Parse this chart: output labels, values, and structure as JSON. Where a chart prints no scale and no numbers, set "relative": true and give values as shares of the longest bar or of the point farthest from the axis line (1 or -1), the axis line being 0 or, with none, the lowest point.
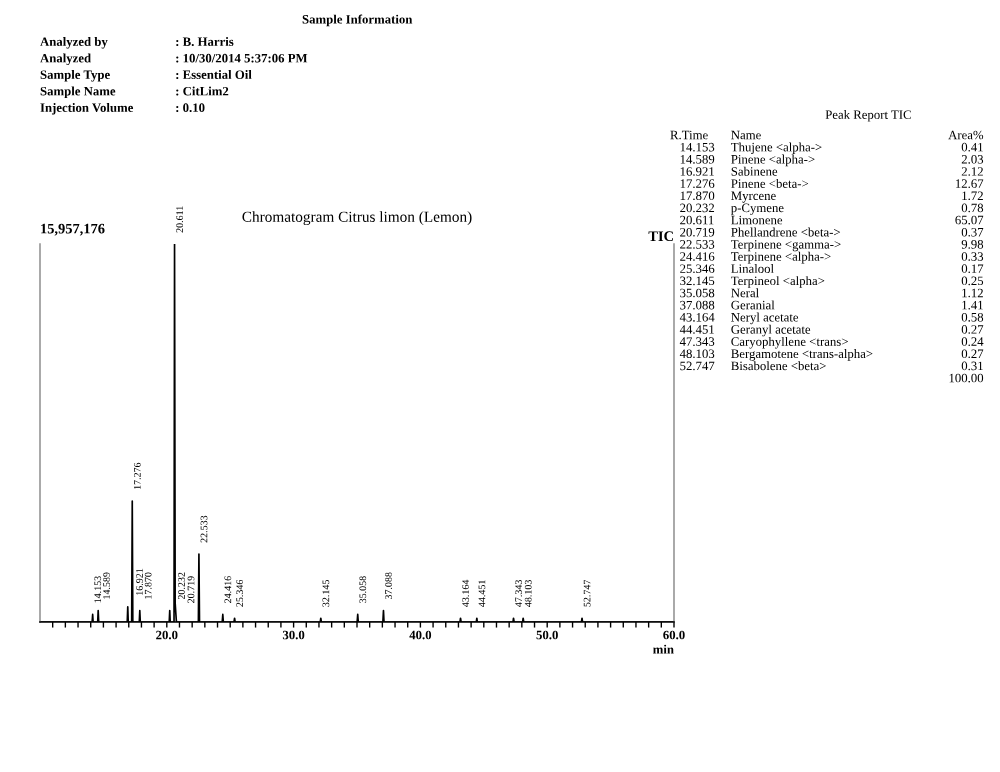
{
  "chart_data": [
    {
      "type": "other",
      "title": "Sample Information",
      "categories": [
        "Analyzed by",
        "Analyzed",
        "Sample Type",
        "Sample Name",
        "Injection Volume"
      ],
      "annotations": [
        ": B. Harris",
        ": 10/30/2014 5:37:06 PM",
        ": Essential Oil",
        ": CitLim2",
        ": 0.10"
      ]
    },
    {
      "type": "line",
      "title": "Chromatogram Citrus limon (Lemon)",
      "xlabel": "min",
      "relative": true,
      "grid": false,
      "tick_labels": "x",
      "marker": "none",
      "line_style": "solid",
      "xlim": [
        10,
        60
      ],
      "xticks": [
        {
          "value": 11,
          "label": null
        },
        {
          "value": 12,
          "label": null
        },
        {
          "value": 13,
          "label": null
        },
        {
          "value": 14,
          "label": null
        },
        {
          "value": 15,
          "label": null
        },
        {
          "value": 16,
          "label": null
        },
        {
          "value": 17,
          "label": null
        },
        {
          "value": 18,
          "label": null
        },
        {
          "value": 19,
          "label": null
        },
        {
          "value": 20,
          "label": "20.0"
        },
        {
          "value": 21,
          "label": null
        },
        {
          "value": 22,
          "label": null
        },
        {
          "value": 23,
          "label": null
        },
        {
          "value": 24,
          "label": null
        },
        {
          "value": 25,
          "label": null
        },
        {
          "value": 26,
          "label": null
        },
        {
          "value": 27,
          "label": null
        },
        {
          "value": 28,
          "label": null
        },
        {
          "value": 29,
          "label": null
        },
        {
          "value": 30,
          "label": "30.0"
        },
        {
          "value": 31,
          "label": null
        },
        {
          "value": 32,
          "label": null
        },
        {
          "value": 33,
          "label": null
        },
        {
          "value": 34,
          "label": null
        },
        {
          "value": 35,
          "label": null
        },
        {
          "value": 36,
          "label": null
        },
        {
          "value": 37,
          "label": null
        },
        {
          "value": 38,
          "label": null
        },
        {
          "value": 39,
          "label": null
        },
        {
          "value": 40,
          "label": "40.0"
        },
        {
          "value": 41,
          "label": null
        },
        {
          "value": 42,
          "label": null
        },
        {
          "value": 43,
          "label": null
        },
        {
          "value": 44,
          "label": null
        },
        {
          "value": 45,
          "label": null
        },
        {
          "value": 46,
          "label": null
        },
        {
          "value": 47,
          "label": null
        },
        {
          "value": 48,
          "label": null
        },
        {
          "value": 49,
          "label": null
        },
        {
          "value": 50,
          "label": "50.0"
        },
        {
          "value": 51,
          "label": null
        },
        {
          "value": 52,
          "label": null
        },
        {
          "value": 53,
          "label": null
        },
        {
          "value": 54,
          "label": null
        },
        {
          "value": 55,
          "label": null
        },
        {
          "value": 56,
          "label": null
        },
        {
          "value": 57,
          "label": null
        },
        {
          "value": 58,
          "label": null
        },
        {
          "value": 59,
          "label": null
        },
        {
          "value": 60,
          "label": "60.0"
        }
      ],
      "series": [
        {
          "color": "#000000",
          "x": [
            10,
            14.11,
            14.153,
            14.19,
            14.55,
            14.589,
            14.63,
            16.88,
            16.921,
            16.96,
            17.23,
            17.276,
            17.32,
            17.83,
            17.87,
            17.91,
            20.19,
            20.232,
            20.27,
            20.57,
            20.611,
            20.66,
            20.719,
            20.76,
            22.49,
            22.533,
            22.58,
            24.37,
            24.416,
            24.46,
            25.3,
            25.346,
            25.39,
            32.1,
            32.145,
            32.19,
            35.01,
            35.058,
            35.1,
            37.04,
            37.088,
            37.13,
            43.12,
            43.164,
            43.21,
            44.41,
            44.451,
            44.49,
            47.3,
            47.343,
            47.39,
            48.06,
            48.103,
            48.15,
            52.7,
            52.747,
            52.79,
            60
          ],
          "values": [
            0,
            0,
            0.02,
            0,
            0,
            0.03,
            0,
            0,
            0.04,
            0,
            0,
            0.32,
            0,
            0,
            0.03,
            0,
            0,
            0.03,
            0,
            0,
            1,
            0.05,
            0.02,
            0,
            0,
            0.18,
            0,
            0,
            0.02,
            0,
            0,
            0.01,
            0,
            0,
            0.01,
            0,
            0,
            0.02,
            0,
            0,
            0.03,
            0,
            0,
            0.01,
            0,
            0,
            0.01,
            0,
            0,
            0.01,
            0,
            0,
            0.01,
            0,
            0,
            0.01,
            0,
            0
          ]
        }
      ],
      "annotations": [
        "15,957,176",
        "TIC",
        {
          "text": "14.153",
          "x": 14.153,
          "y": 0.02
        },
        {
          "text": "14.589",
          "x": 14.589,
          "y": 0.03
        },
        {
          "text": "16.921",
          "x": 16.921,
          "y": 0.04
        },
        {
          "text": "17.276",
          "x": 17.276,
          "y": 0.32
        },
        {
          "text": "17.870",
          "x": 17.87,
          "y": 0.03
        },
        {
          "text": "20.232",
          "x": 20.232,
          "y": 0.03
        },
        {
          "text": "20.611",
          "x": 20.611,
          "y": 1
        },
        {
          "text": "20.719",
          "x": 20.719,
          "y": 0.02
        },
        {
          "text": "22.533",
          "x": 22.533,
          "y": 0.18
        },
        {
          "text": "24.416",
          "x": 24.416,
          "y": 0.02
        },
        {
          "text": "25.346",
          "x": 25.346,
          "y": 0.01
        },
        {
          "text": "32.145",
          "x": 32.145,
          "y": 0.01
        },
        {
          "text": "35.058",
          "x": 35.058,
          "y": 0.02
        },
        {
          "text": "37.088",
          "x": 37.088,
          "y": 0.03
        },
        {
          "text": "43.164",
          "x": 43.164,
          "y": 0.01
        },
        {
          "text": "44.451",
          "x": 44.451,
          "y": 0.01
        },
        {
          "text": "47.343",
          "x": 47.343,
          "y": 0.01
        },
        {
          "text": "48.103",
          "x": 48.103,
          "y": 0.01
        },
        {
          "text": "52.747",
          "x": 52.747,
          "y": 0.01
        }
      ]
    },
    {
      "type": "other",
      "title": "Peak Report TIC",
      "totals": [
        "100.00"
      ],
      "annotations": [
        "R.Time",
        "Name",
        "Area%",
        "14.153",
        "Thujene <alpha->",
        "0.41",
        "14.589",
        "Pinene <alpha->",
        "2.03",
        "16.921",
        "Sabinene",
        "2.12",
        "17.276",
        "Pinene <beta->",
        "12.67",
        "17.870",
        "Myrcene",
        "1.72",
        "20.232",
        "p-Cymene",
        "0.78",
        "20.611",
        "Limonene",
        "65.07",
        "20.719",
        "Phellandrene <beta->",
        "0.37",
        "22.533",
        "Terpinene <gamma->",
        "9.98",
        "24.416",
        "Terpinene <alpha->",
        "0.33",
        "25.346",
        "Linalool",
        "0.17",
        "32.145",
        "Terpineol <alpha>",
        "0.25",
        "35.058",
        "Neral",
        "1.12",
        "37.088",
        "Geranial",
        "1.41",
        "43.164",
        "Neryl acetate",
        "0.58",
        "44.451",
        "Geranyl acetate",
        "0.27",
        "47.343",
        "Caryophyllene <trans>",
        "0.24",
        "48.103",
        "Bergamotene <trans-alpha>",
        "0.27",
        "52.747",
        "Bisabolene <beta>",
        "0.31"
      ]
    }
  ]
}
